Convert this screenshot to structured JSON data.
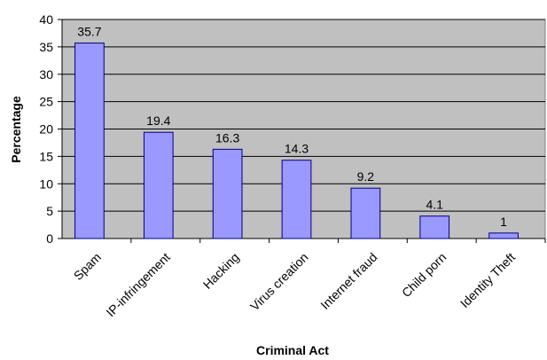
{
  "chart_data": {
    "type": "bar",
    "title": "",
    "xlabel": "Criminal Act",
    "ylabel": "Percentage",
    "categories": [
      "Spam",
      "IP-infringement",
      "Hacking",
      "Virus creation",
      "Internet fraud",
      "Child porn",
      "Identity Theft"
    ],
    "values": [
      35.7,
      19.4,
      16.3,
      14.3,
      9.2,
      4.1,
      1
    ],
    "data_labels": [
      "35.7",
      "19.4",
      "16.3",
      "14.3",
      "9.2",
      "4.1",
      "1"
    ],
    "ylim": [
      0,
      40
    ],
    "yticks": [
      0,
      5,
      10,
      15,
      20,
      25,
      30,
      35,
      40
    ],
    "grid": true,
    "legend": "none",
    "colors": {
      "bar_fill": "#9999ff",
      "bar_stroke": "#000080",
      "plot_background": "#c0c0c0",
      "grid": "#000000"
    }
  }
}
